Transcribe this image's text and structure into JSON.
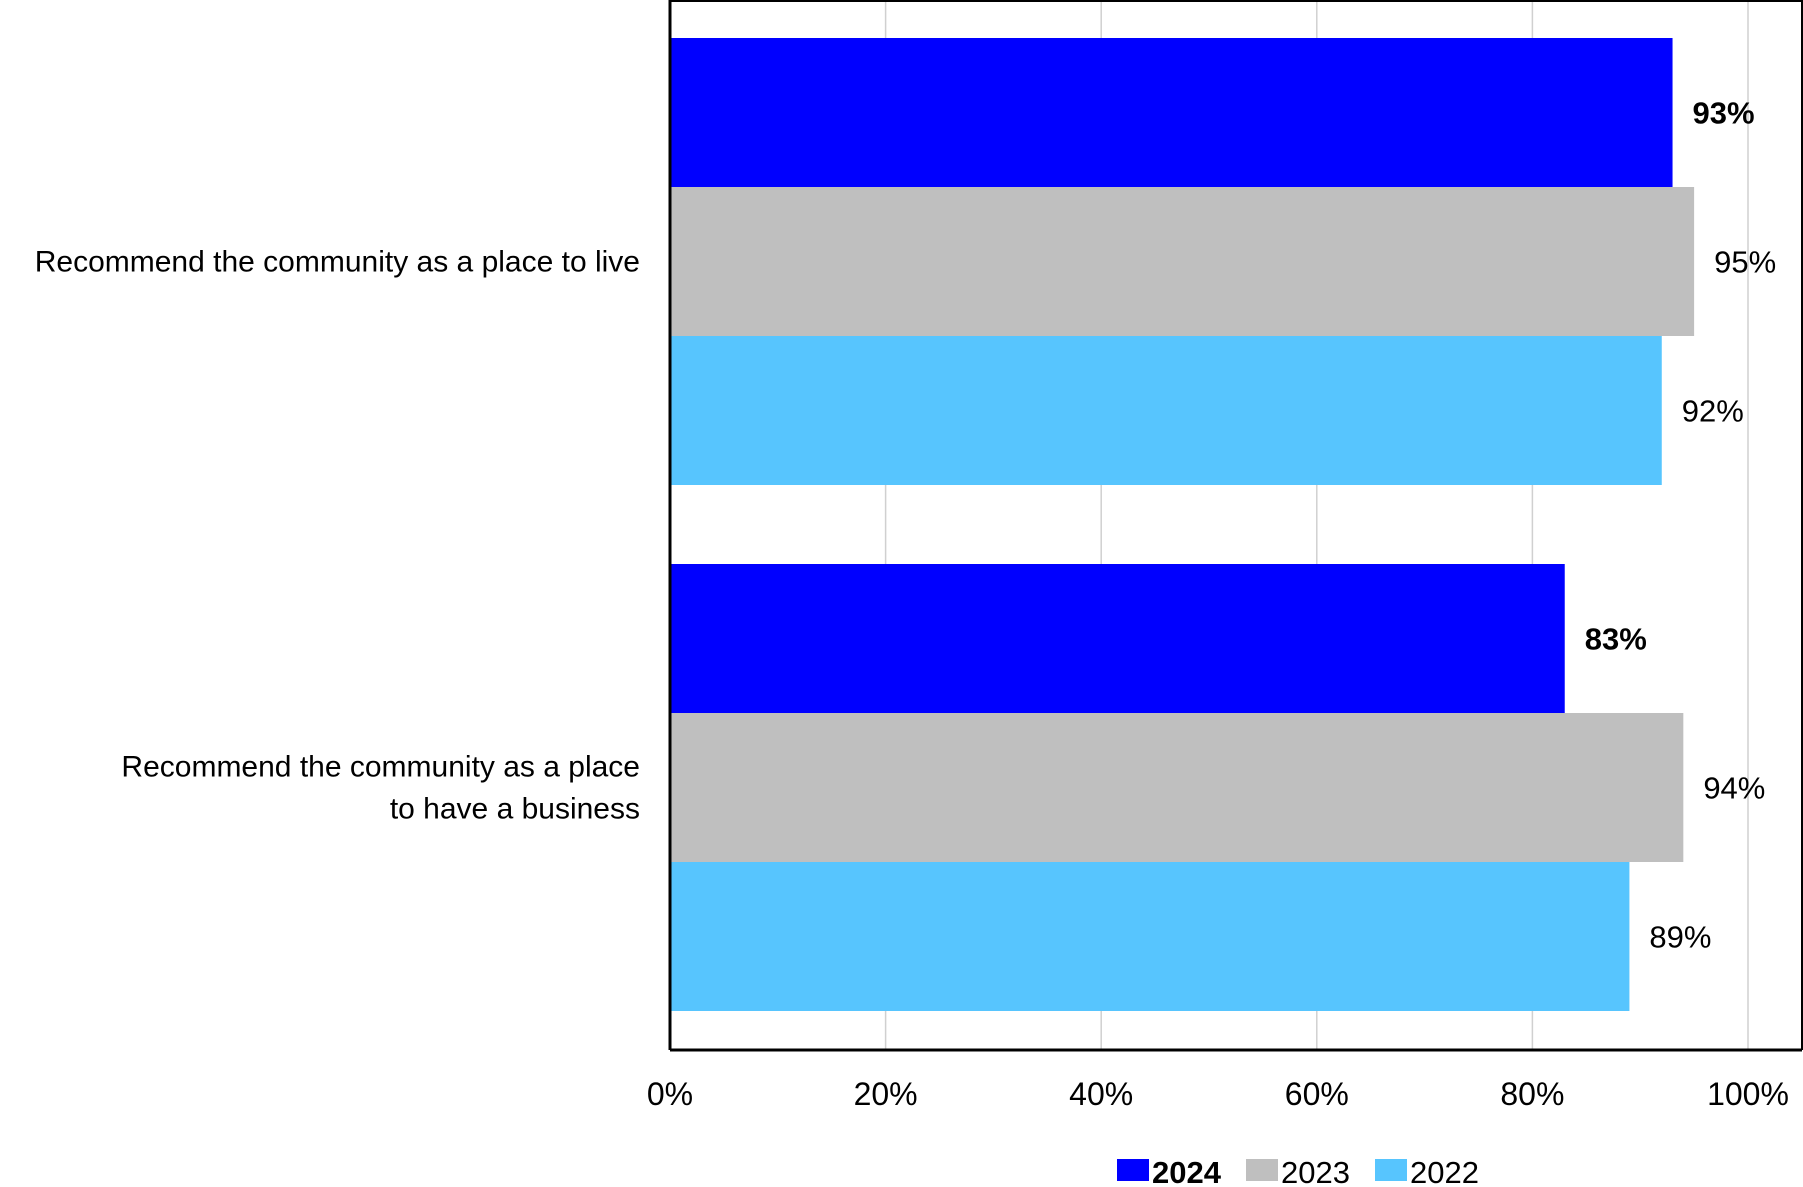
{
  "chart_data": {
    "type": "bar",
    "orientation": "horizontal",
    "title": "",
    "xlabel": "",
    "ylabel": "",
    "categories": [
      [
        "Recommend the community as a place to live"
      ],
      [
        "Recommend the community as a place",
        "to have a business"
      ]
    ],
    "series": [
      {
        "name": "2024",
        "color": "#0000FF",
        "values": [
          93,
          83
        ],
        "bold": true
      },
      {
        "name": "2023",
        "color": "#BFBFBF",
        "values": [
          95,
          94
        ],
        "bold": false
      },
      {
        "name": "2022",
        "color": "#57C5FE",
        "values": [
          92,
          89
        ],
        "bold": false
      }
    ],
    "value_suffix": "%",
    "xlim": [
      0,
      100
    ],
    "xticks": [
      0,
      20,
      40,
      60,
      80,
      100
    ],
    "tick_labels": [
      "0%",
      "20%",
      "40%",
      "60%",
      "80%",
      "100%"
    ],
    "grid": true,
    "legend_position": "bottom"
  }
}
